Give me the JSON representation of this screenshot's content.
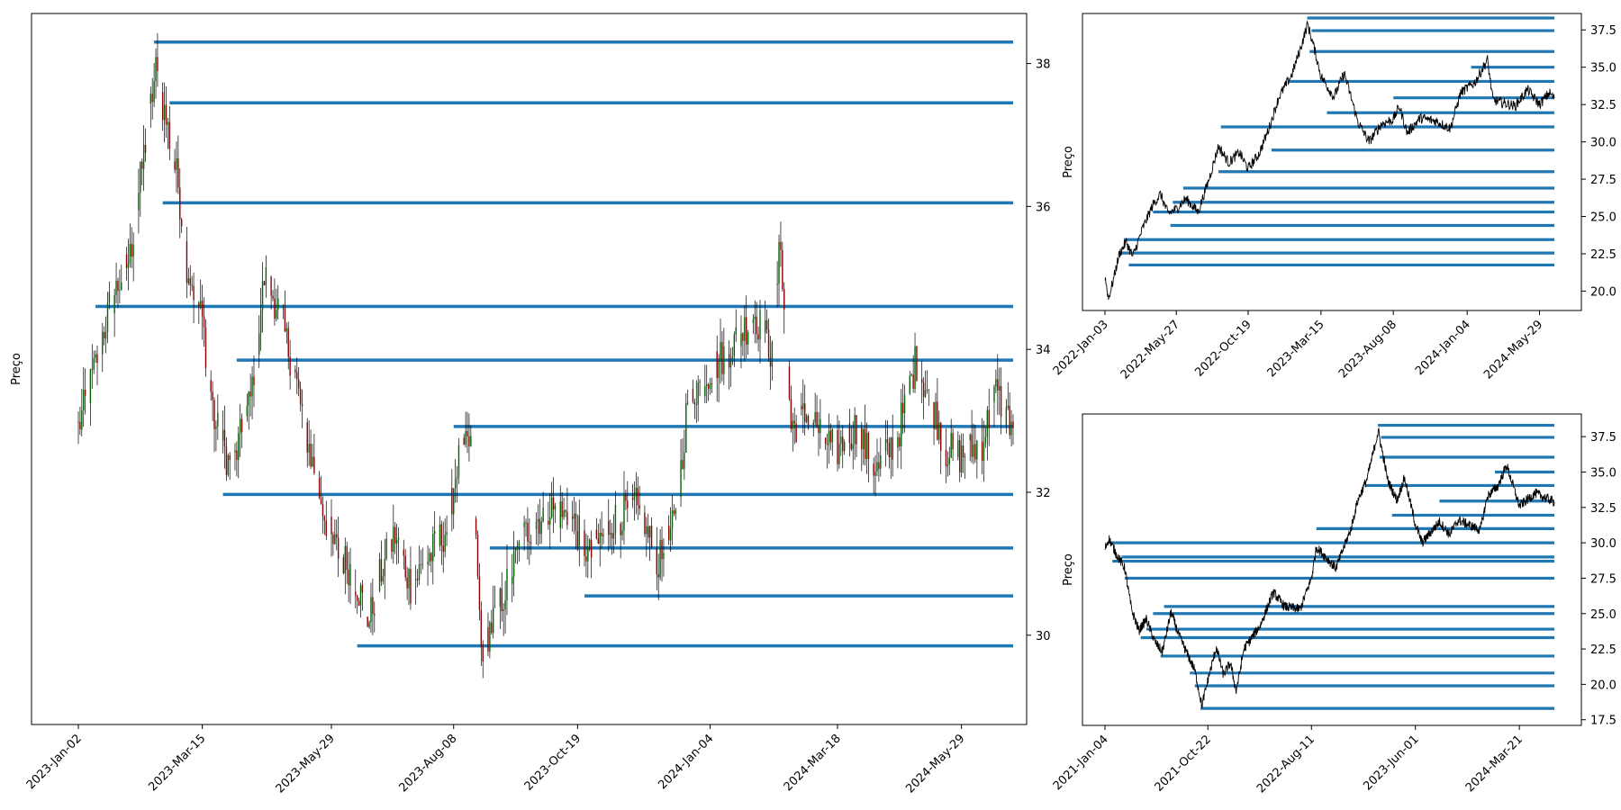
{
  "chart_data": [
    {
      "type": "candlestick",
      "panel": "main",
      "ylabel": "Preço",
      "x_ticks": [
        "2023-Jan-02",
        "2023-Mar-15",
        "2023-May-29",
        "2023-Aug-08",
        "2023-Oct-19",
        "2024-Jan-04",
        "2024-Mar-18",
        "2024-May-29"
      ],
      "y_ticks": [
        30,
        32,
        34,
        36,
        38
      ],
      "ylim": [
        28.75,
        38.7
      ],
      "x_range": [
        "2023-Jan-02",
        "2024-Jun-28"
      ],
      "y_axis_side": "right",
      "levels": [
        {
          "start": "2023-Feb-15",
          "price": 38.3
        },
        {
          "start": "2023-Feb-24",
          "price": 37.45
        },
        {
          "start": "2023-Feb-20",
          "price": 36.05
        },
        {
          "start": "2023-Jan-12",
          "price": 34.6
        },
        {
          "start": "2023-Apr-04",
          "price": 33.85
        },
        {
          "start": "2023-Aug-08",
          "price": 32.92
        },
        {
          "start": "2023-Mar-27",
          "price": 31.97
        },
        {
          "start": "2023-Aug-29",
          "price": 31.22
        },
        {
          "start": "2023-Oct-23",
          "price": 30.55
        },
        {
          "start": "2023-Jun-13",
          "price": 29.85
        }
      ],
      "price_path": [
        [
          "2023-Jan-02",
          32.9
        ],
        [
          "2023-Jan-10",
          33.6
        ],
        [
          "2023-Jan-20",
          34.6
        ],
        [
          "2023-Feb-01",
          35.3
        ],
        [
          "2023-Feb-10",
          36.9
        ],
        [
          "2023-Feb-16",
          37.9
        ],
        [
          "2023-Feb-22",
          37.2
        ],
        [
          "2023-Mar-01",
          36.3
        ],
        [
          "2023-Mar-06",
          35.2
        ],
        [
          "2023-Mar-15",
          34.4
        ],
        [
          "2023-Mar-22",
          33.0
        ],
        [
          "2023-Apr-01",
          32.3
        ],
        [
          "2023-Apr-12",
          33.3
        ],
        [
          "2023-Apr-20",
          35.0
        ],
        [
          "2023-Apr-28",
          34.6
        ],
        [
          "2023-May-08",
          33.6
        ],
        [
          "2023-May-18",
          32.4
        ],
        [
          "2023-May-29",
          31.3
        ],
        [
          "2023-Jun-10",
          30.9
        ],
        [
          "2023-Jun-20",
          30.2
        ],
        [
          "2023-Jun-27",
          30.9
        ],
        [
          "2023-Jul-05",
          31.4
        ],
        [
          "2023-Jul-14",
          30.7
        ],
        [
          "2023-Jul-25",
          31.1
        ],
        [
          "2023-Aug-04",
          31.5
        ],
        [
          "2023-Aug-10",
          32.4
        ],
        [
          "2023-Aug-18",
          32.7
        ],
        [
          "2023-Aug-24",
          29.8
        ],
        [
          "2023-Sep-05",
          30.5
        ],
        [
          "2023-Sep-18",
          31.4
        ],
        [
          "2023-Oct-02",
          31.8
        ],
        [
          "2023-Oct-16",
          31.6
        ],
        [
          "2023-Oct-26",
          31.1
        ],
        [
          "2023-Nov-08",
          31.6
        ],
        [
          "2023-Nov-22",
          31.8
        ],
        [
          "2023-Dec-05",
          31.0
        ],
        [
          "2023-Dec-15",
          31.6
        ],
        [
          "2023-Dec-22",
          33.3
        ],
        [
          "2024-Jan-04",
          33.7
        ],
        [
          "2024-Jan-18",
          34.1
        ],
        [
          "2024-Jan-30",
          34.5
        ],
        [
          "2024-Feb-08",
          34.0
        ],
        [
          "2024-Feb-14",
          35.5
        ],
        [
          "2024-Feb-20",
          32.9
        ],
        [
          "2024-Mar-01",
          33.1
        ],
        [
          "2024-Mar-12",
          32.7
        ],
        [
          "2024-Mar-18",
          32.6
        ],
        [
          "2024-Mar-28",
          32.9
        ],
        [
          "2024-Apr-10",
          32.3
        ],
        [
          "2024-Apr-22",
          32.8
        ],
        [
          "2024-May-02",
          33.8
        ],
        [
          "2024-May-10",
          33.4
        ],
        [
          "2024-May-20",
          32.6
        ],
        [
          "2024-May-29",
          32.5
        ],
        [
          "2024-Jun-10",
          32.7
        ],
        [
          "2024-Jun-18",
          33.4
        ],
        [
          "2024-Jun-28",
          32.9
        ]
      ],
      "colors": {
        "level": "#1f77b4",
        "up": "#006400",
        "down": "#8b0000",
        "wick": "#000000"
      }
    },
    {
      "type": "line",
      "panel": "top-right",
      "ylabel": "Preço",
      "x_ticks": [
        "2022-Jan-03",
        "2022-May-27",
        "2022-Oct-19",
        "2023-Mar-15",
        "2023-Aug-08",
        "2024-Jan-04",
        "2024-May-29"
      ],
      "y_ticks": [
        20.0,
        22.5,
        25.0,
        27.5,
        30.0,
        32.5,
        35.0,
        37.5
      ],
      "ylim": [
        18.7,
        38.6
      ],
      "x_range": [
        "2022-Jan-03",
        "2024-Jun-28"
      ],
      "y_axis_side": "right",
      "levels": [
        {
          "start": "2023-Feb-15",
          "price": 38.3
        },
        {
          "start": "2023-Feb-24",
          "price": 37.45
        },
        {
          "start": "2023-Feb-20",
          "price": 36.05
        },
        {
          "start": "2024-Jan-12",
          "price": 35.0
        },
        {
          "start": "2023-Jan-10",
          "price": 34.05
        },
        {
          "start": "2023-Aug-08",
          "price": 32.95
        },
        {
          "start": "2023-Mar-27",
          "price": 31.95
        },
        {
          "start": "2022-Aug-25",
          "price": 31.0
        },
        {
          "start": "2022-Dec-05",
          "price": 29.45
        },
        {
          "start": "2022-Aug-20",
          "price": 28.0
        },
        {
          "start": "2022-Jun-10",
          "price": 26.9
        },
        {
          "start": "2022-May-20",
          "price": 25.95
        },
        {
          "start": "2022-Apr-10",
          "price": 25.3
        },
        {
          "start": "2022-May-15",
          "price": 24.4
        },
        {
          "start": "2022-Feb-10",
          "price": 23.45
        },
        {
          "start": "2022-Feb-01",
          "price": 22.55
        },
        {
          "start": "2022-Feb-20",
          "price": 21.75
        }
      ],
      "price_path": [
        [
          "2022-Jan-03",
          21.0
        ],
        [
          "2022-Jan-10",
          19.5
        ],
        [
          "2022-Jan-18",
          20.5
        ],
        [
          "2022-Feb-01",
          22.5
        ],
        [
          "2022-Feb-15",
          23.3
        ],
        [
          "2022-Feb-28",
          22.3
        ],
        [
          "2022-Mar-20",
          24.2
        ],
        [
          "2022-Apr-10",
          25.8
        ],
        [
          "2022-Apr-25",
          26.5
        ],
        [
          "2022-May-10",
          25.2
        ],
        [
          "2022-May-27",
          25.5
        ],
        [
          "2022-Jun-15",
          26.2
        ],
        [
          "2022-Jul-10",
          25.3
        ],
        [
          "2022-Aug-01",
          27.5
        ],
        [
          "2022-Aug-20",
          29.7
        ],
        [
          "2022-Sep-10",
          28.6
        ],
        [
          "2022-Oct-01",
          29.3
        ],
        [
          "2022-Oct-19",
          28.2
        ],
        [
          "2022-Nov-10",
          29.2
        ],
        [
          "2022-Dec-01",
          31.0
        ],
        [
          "2022-Dec-20",
          33.0
        ],
        [
          "2023-Jan-15",
          34.5
        ],
        [
          "2023-Feb-01",
          36.2
        ],
        [
          "2023-Feb-16",
          37.9
        ],
        [
          "2023-Mar-01",
          36.3
        ],
        [
          "2023-Mar-15",
          34.4
        ],
        [
          "2023-Apr-10",
          33.0
        ],
        [
          "2023-May-01",
          34.6
        ],
        [
          "2023-May-29",
          31.3
        ],
        [
          "2023-Jun-20",
          30.0
        ],
        [
          "2023-Jul-15",
          31.2
        ],
        [
          "2023-Aug-08",
          31.5
        ],
        [
          "2023-Aug-20",
          32.4
        ],
        [
          "2023-Sep-05",
          30.6
        ],
        [
          "2023-Oct-01",
          31.6
        ],
        [
          "2023-Nov-01",
          31.4
        ],
        [
          "2023-Dec-01",
          30.9
        ],
        [
          "2023-Dec-22",
          33.3
        ],
        [
          "2024-Jan-20",
          34.0
        ],
        [
          "2024-Feb-14",
          35.5
        ],
        [
          "2024-Feb-25",
          32.8
        ],
        [
          "2024-Mar-18",
          32.6
        ],
        [
          "2024-Apr-10",
          32.4
        ],
        [
          "2024-May-05",
          33.5
        ],
        [
          "2024-May-29",
          32.5
        ],
        [
          "2024-Jun-18",
          33.3
        ],
        [
          "2024-Jun-28",
          32.9
        ]
      ],
      "colors": {
        "level": "#1f77b4",
        "line": "#000000"
      }
    },
    {
      "type": "line",
      "panel": "bottom-right",
      "ylabel": "Preço",
      "x_ticks": [
        "2021-Jan-04",
        "2021-Oct-22",
        "2022-Aug-11",
        "2023-Jun-01",
        "2024-Mar-21"
      ],
      "y_ticks": [
        17.5,
        20.0,
        22.5,
        25.0,
        27.5,
        30.0,
        32.5,
        35.0,
        37.5
      ],
      "ylim": [
        17.1,
        39.1
      ],
      "x_range": [
        "2021-Jan-04",
        "2024-Jun-28"
      ],
      "y_axis_side": "right",
      "levels": [
        {
          "start": "2023-Feb-15",
          "price": 38.3
        },
        {
          "start": "2023-Feb-24",
          "price": 37.45
        },
        {
          "start": "2023-Feb-20",
          "price": 36.05
        },
        {
          "start": "2024-Jan-12",
          "price": 35.0
        },
        {
          "start": "2023-Jan-10",
          "price": 34.05
        },
        {
          "start": "2023-Aug-08",
          "price": 32.95
        },
        {
          "start": "2023-Mar-27",
          "price": 31.95
        },
        {
          "start": "2022-Aug-25",
          "price": 31.0
        },
        {
          "start": "2021-Jan-20",
          "price": 30.0
        },
        {
          "start": "2021-Feb-20",
          "price": 29.0
        },
        {
          "start": "2021-Jan-25",
          "price": 28.7
        },
        {
          "start": "2021-Mar-01",
          "price": 27.5
        },
        {
          "start": "2021-Jun-20",
          "price": 25.5
        },
        {
          "start": "2021-May-20",
          "price": 25.0
        },
        {
          "start": "2021-May-01",
          "price": 23.9
        },
        {
          "start": "2021-Apr-15",
          "price": 23.3
        },
        {
          "start": "2021-Jun-10",
          "price": 22.0
        },
        {
          "start": "2021-Sep-01",
          "price": 20.8
        },
        {
          "start": "2021-Sep-15",
          "price": 19.9
        },
        {
          "start": "2021-Oct-01",
          "price": 18.3
        }
      ],
      "price_path": [
        [
          "2021-Jan-04",
          29.6
        ],
        [
          "2021-Jan-15",
          30.3
        ],
        [
          "2021-Feb-05",
          29.2
        ],
        [
          "2021-Mar-01",
          28.2
        ],
        [
          "2021-Mar-20",
          25.3
        ],
        [
          "2021-Apr-10",
          23.8
        ],
        [
          "2021-May-01",
          24.6
        ],
        [
          "2021-May-25",
          23.0
        ],
        [
          "2021-Jun-15",
          22.3
        ],
        [
          "2021-Jul-10",
          25.1
        ],
        [
          "2021-Jul-30",
          23.6
        ],
        [
          "2021-Aug-20",
          22.4
        ],
        [
          "2021-Sep-15",
          21.0
        ],
        [
          "2021-Oct-05",
          18.5
        ],
        [
          "2021-Oct-22",
          20.3
        ],
        [
          "2021-Nov-15",
          22.6
        ],
        [
          "2021-Dec-05",
          20.7
        ],
        [
          "2021-Dec-25",
          21.5
        ],
        [
          "2022-Jan-10",
          19.5
        ],
        [
          "2022-Feb-01",
          22.5
        ],
        [
          "2022-Mar-20",
          24.2
        ],
        [
          "2022-Apr-25",
          26.5
        ],
        [
          "2022-May-27",
          25.5
        ],
        [
          "2022-Jul-10",
          25.3
        ],
        [
          "2022-Aug-11",
          27.5
        ],
        [
          "2022-Aug-25",
          29.7
        ],
        [
          "2022-Oct-19",
          28.2
        ],
        [
          "2022-Dec-01",
          31.0
        ],
        [
          "2022-Dec-20",
          33.0
        ],
        [
          "2023-Jan-15",
          34.5
        ],
        [
          "2023-Feb-16",
          37.9
        ],
        [
          "2023-Mar-15",
          34.4
        ],
        [
          "2023-Apr-10",
          33.0
        ],
        [
          "2023-May-01",
          34.6
        ],
        [
          "2023-Jun-01",
          31.3
        ],
        [
          "2023-Jun-20",
          30.0
        ],
        [
          "2023-Aug-08",
          31.5
        ],
        [
          "2023-Sep-05",
          30.6
        ],
        [
          "2023-Oct-01",
          31.6
        ],
        [
          "2023-Dec-01",
          30.9
        ],
        [
          "2023-Dec-22",
          33.3
        ],
        [
          "2024-Jan-20",
          34.0
        ],
        [
          "2024-Feb-14",
          35.5
        ],
        [
          "2024-Mar-21",
          32.6
        ],
        [
          "2024-May-05",
          33.5
        ],
        [
          "2024-Jun-28",
          32.9
        ]
      ],
      "colors": {
        "level": "#1f77b4",
        "line": "#000000"
      }
    }
  ]
}
